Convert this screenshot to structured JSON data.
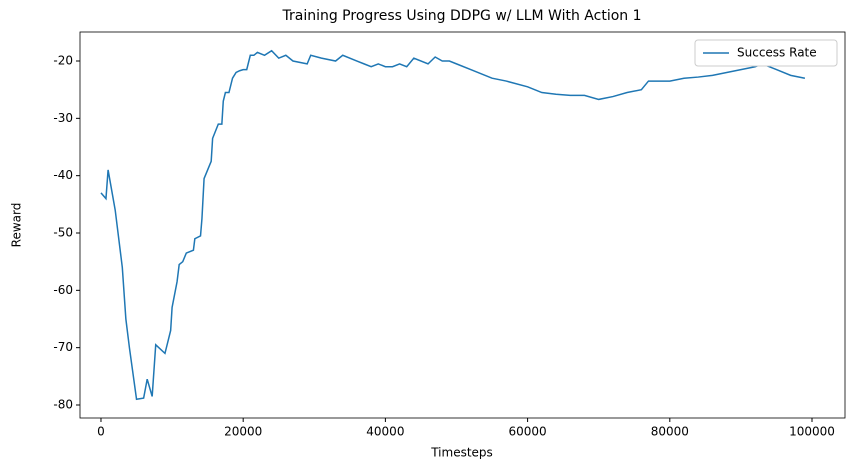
{
  "chart_data": {
    "type": "line",
    "title": "Training Progress Using DDPG w/ LLM With Action 1",
    "x_label": "Timesteps",
    "y_label": "Reward",
    "x": [
      0,
      700,
      1000,
      2000,
      3000,
      3500,
      4000,
      5000,
      6000,
      6500,
      7200,
      7700,
      9000,
      9800,
      10000,
      10700,
      11000,
      11500,
      12000,
      13000,
      13200,
      14000,
      14200,
      14500,
      15000,
      15500,
      15700,
      16500,
      17000,
      17200,
      17500,
      18000,
      18500,
      19000,
      19500,
      20000,
      20500,
      21000,
      21500,
      22000,
      23000,
      24000,
      25000,
      26000,
      27000,
      29000,
      29500,
      31000,
      33000,
      34000,
      36000,
      37000,
      38000,
      39000,
      40000,
      41000,
      42000,
      43000,
      44000,
      46000,
      47000,
      48000,
      49000,
      50000,
      52000,
      55000,
      57000,
      60000,
      62000,
      64000,
      66000,
      68000,
      70000,
      72000,
      74000,
      76000,
      77000,
      80000,
      82000,
      84000,
      86000,
      88000,
      90000,
      92000,
      93000,
      95000,
      97000,
      99000
    ],
    "series": [
      {
        "name": "Success Rate",
        "color": "#1f77b4",
        "values": [
          -43,
          -44,
          -39,
          -46,
          -56,
          -65,
          -70,
          -79,
          -78.8,
          -75.5,
          -78.5,
          -69.5,
          -71,
          -67,
          -63,
          -58.5,
          -55.5,
          -55,
          -53.5,
          -53,
          -51,
          -50.5,
          -47.5,
          -40.5,
          -39,
          -37.5,
          -33.5,
          -31,
          -31,
          -27,
          -25.5,
          -25.5,
          -23,
          -22,
          -21.7,
          -21.5,
          -21.5,
          -19,
          -19,
          -18.5,
          -19,
          -18.2,
          -19.5,
          -19,
          -20,
          -20.5,
          -19,
          -19.5,
          -20,
          -19,
          -20,
          -20.5,
          -21,
          -20.5,
          -21,
          -21,
          -20.5,
          -21,
          -19.5,
          -20.5,
          -19.3,
          -20,
          -20,
          -20.5,
          -21.5,
          -23,
          -23.5,
          -24.5,
          -25.5,
          -25.8,
          -26,
          -26,
          -26.7,
          -26.2,
          -25.5,
          -25,
          -23.5,
          -23.5,
          -23,
          -22.8,
          -22.5,
          -22,
          -21.5,
          -21,
          -20.5,
          -21.5,
          -22.5,
          -23
        ]
      }
    ],
    "xlim": [
      -2950,
      104640
    ],
    "ylim": [
      -82.27,
      -14.94
    ],
    "xticks": [
      0,
      20000,
      40000,
      60000,
      80000,
      100000
    ],
    "yticks": [
      -80,
      -70,
      -60,
      -50,
      -40,
      -30,
      -20
    ],
    "legend": "upper right"
  }
}
